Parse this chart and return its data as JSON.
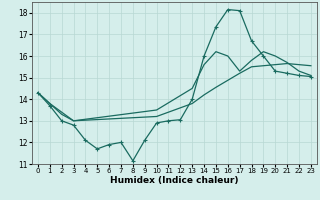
{
  "xlabel": "Humidex (Indice chaleur)",
  "background_color": "#d5eeeb",
  "grid_color": "#b8d8d4",
  "line_color": "#1a6b60",
  "xlim": [
    -0.5,
    23.5
  ],
  "ylim": [
    11,
    18.5
  ],
  "xticks": [
    0,
    1,
    2,
    3,
    4,
    5,
    6,
    7,
    8,
    9,
    10,
    11,
    12,
    13,
    14,
    15,
    16,
    17,
    18,
    19,
    20,
    21,
    22,
    23
  ],
  "yticks": [
    11,
    12,
    13,
    14,
    15,
    16,
    17,
    18
  ],
  "curve_main_x": [
    0,
    1,
    2,
    3,
    4,
    5,
    6,
    7,
    8,
    9,
    10,
    11,
    12,
    13,
    14,
    15,
    16,
    17,
    18,
    19,
    20,
    21,
    22,
    23
  ],
  "curve_main_y": [
    14.3,
    13.7,
    13.0,
    12.8,
    12.1,
    11.7,
    11.9,
    12.0,
    11.15,
    12.1,
    12.9,
    13.0,
    13.05,
    14.0,
    16.0,
    17.35,
    18.15,
    18.1,
    16.7,
    16.0,
    15.3,
    15.2,
    15.1,
    15.05
  ],
  "curve_trend1_x": [
    0,
    1,
    2,
    3,
    10,
    13,
    14,
    15,
    17,
    18,
    20,
    21,
    22,
    23
  ],
  "curve_trend1_y": [
    14.3,
    13.8,
    13.3,
    13.0,
    13.2,
    13.8,
    14.2,
    14.55,
    15.2,
    15.5,
    15.6,
    15.65,
    15.6,
    15.55
  ],
  "curve_trend2_x": [
    0,
    1,
    3,
    10,
    13,
    14,
    15,
    16,
    17,
    18,
    19,
    20,
    21,
    22,
    23
  ],
  "curve_trend2_y": [
    14.3,
    13.8,
    13.0,
    13.5,
    14.5,
    15.6,
    16.2,
    16.0,
    15.3,
    15.8,
    16.2,
    16.0,
    15.7,
    15.3,
    15.1
  ]
}
